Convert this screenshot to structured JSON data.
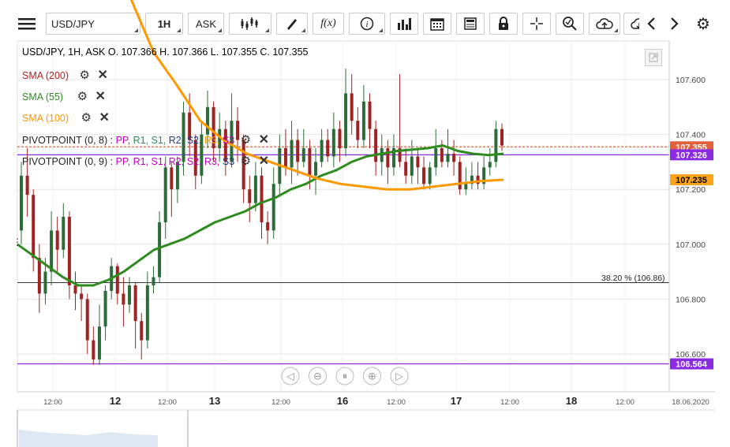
{
  "toolbar": {
    "menu_icon": "hamburger-menu-icon",
    "symbol": "USD/JPY",
    "timeframe": "1H",
    "price_side": "ASK",
    "icons": [
      "candlestick-type-icon",
      "draw-pencil-icon",
      "indicator-fx-icon",
      "info-icon",
      "volume-bars-icon",
      "calendar-icon",
      "news-icon",
      "lock-icon",
      "crosshair-icon",
      "zoom-icon",
      "upload-cloud-icon",
      "download-cloud-icon",
      "back-arrow-icon",
      "forward-arrow-icon",
      "settings-gear-icon"
    ],
    "fx_label": "f(x)"
  },
  "header": {
    "ohlc": "USD/JPY, 1H, ASK    O. 107.366 H. 107.366 L. 107.355 C. 107.355"
  },
  "indicators": [
    {
      "label": "SMA (200)",
      "color": "#b22222"
    },
    {
      "label": "SMA (55)",
      "color": "#2e8b1e"
    },
    {
      "label": "SMA (100)",
      "color": "#ff9900"
    }
  ],
  "pivots": [
    {
      "label": "PIVOTPOINT (0, 8)",
      "parts": [
        [
          "PP",
          "#c000c0"
        ],
        [
          "R1",
          "#2e8b57"
        ],
        [
          "S1",
          "#2e8b57"
        ],
        [
          "R2",
          "#1e3a8a"
        ],
        [
          "S2",
          "#1e3a8a"
        ],
        [
          "R3",
          "#ff9900"
        ],
        [
          "S3",
          "#c000c0"
        ]
      ]
    },
    {
      "label": "PIVOTPOINT (0, 9)",
      "parts": [
        [
          "PP",
          "#c000c0"
        ],
        [
          "R1",
          "#c000c0"
        ],
        [
          "S1",
          "#c000c0"
        ],
        [
          "R2",
          "#c000c0"
        ],
        [
          "S2",
          "#c000c0"
        ],
        [
          "R3",
          "#c000c0"
        ],
        [
          "S3",
          "#1e3a8a"
        ]
      ]
    }
  ],
  "fib_label": "38.20 % (106.86)",
  "price_tags": [
    {
      "value": "107.355",
      "bg": "#e2603a",
      "fg": "#ffffff",
      "y_price": 107.355
    },
    {
      "value": "107.326",
      "bg": "#8a2be2",
      "fg": "#ffffff",
      "y_price": 107.326
    },
    {
      "value": "107.235",
      "bg": "#ffa31a",
      "fg": "#000000",
      "y_price": 107.235
    },
    {
      "value": "106.564",
      "bg": "#8a2be2",
      "fg": "#ffffff",
      "y_price": 106.564
    }
  ],
  "nav_icons": [
    "scroll-left-icon",
    "zoom-out-icon",
    "reset-zoom-icon",
    "zoom-in-icon",
    "scroll-right-icon"
  ],
  "chart_data": {
    "type": "candlestick",
    "ylim": [
      106.5,
      107.7
    ],
    "y_ticks": [
      "107.600",
      "107.400",
      "107.200",
      "107.000",
      "106.800",
      "106.600"
    ],
    "x_ticks": [
      "12:00",
      "12",
      "12:00",
      "13",
      "12:00",
      "16",
      "12:00",
      "17",
      "12:00",
      "18",
      "12:00",
      "18.06.2020"
    ],
    "hlines": [
      {
        "value": 107.355,
        "color": "#e2603a",
        "dash": true
      },
      {
        "value": 107.326,
        "color": "#8a2be2"
      },
      {
        "value": 106.86,
        "color": "#333"
      },
      {
        "value": 106.564,
        "color": "#8a2be2"
      }
    ],
    "candles": [
      [
        107.05,
        107.25,
        107.3,
        107.0
      ],
      [
        107.25,
        107.18,
        107.35,
        107.1
      ],
      [
        107.18,
        106.95,
        107.2,
        106.9
      ],
      [
        106.95,
        106.82,
        107.0,
        106.75
      ],
      [
        106.82,
        106.9,
        106.95,
        106.78
      ],
      [
        106.9,
        107.05,
        107.12,
        106.85
      ],
      [
        107.05,
        106.98,
        107.1,
        106.9
      ],
      [
        106.98,
        107.1,
        107.15,
        106.95
      ],
      [
        107.1,
        106.85,
        107.12,
        106.8
      ],
      [
        106.85,
        106.82,
        106.9,
        106.76
      ],
      [
        106.82,
        106.8,
        106.85,
        106.72
      ],
      [
        106.8,
        106.65,
        106.82,
        106.6
      ],
      [
        106.65,
        106.58,
        106.7,
        106.56
      ],
      [
        106.58,
        106.7,
        106.78,
        106.56
      ],
      [
        106.7,
        106.83,
        106.85,
        106.65
      ],
      [
        106.83,
        106.92,
        106.95,
        106.8
      ],
      [
        106.92,
        106.82,
        106.93,
        106.78
      ],
      [
        106.82,
        106.78,
        106.88,
        106.7
      ],
      [
        106.78,
        106.85,
        106.88,
        106.75
      ],
      [
        106.85,
        106.72,
        106.86,
        106.62
      ],
      [
        106.72,
        106.65,
        106.75,
        106.58
      ],
      [
        106.65,
        106.85,
        106.9,
        106.62
      ],
      [
        106.85,
        106.88,
        106.92,
        106.82
      ],
      [
        106.88,
        107.08,
        107.12,
        106.86
      ],
      [
        107.08,
        107.28,
        107.32,
        107.02
      ],
      [
        107.28,
        107.2,
        107.3,
        107.1
      ],
      [
        107.2,
        107.3,
        107.32,
        107.15
      ],
      [
        107.3,
        107.48,
        107.52,
        107.25
      ],
      [
        107.48,
        107.38,
        107.55,
        107.32
      ],
      [
        107.38,
        107.25,
        107.4,
        107.2
      ],
      [
        107.25,
        107.4,
        107.45,
        107.22
      ],
      [
        107.4,
        107.5,
        107.56,
        107.35
      ],
      [
        107.5,
        107.35,
        107.52,
        107.3
      ],
      [
        107.35,
        107.42,
        107.48,
        107.3
      ],
      [
        107.42,
        107.3,
        107.45,
        107.25
      ],
      [
        107.3,
        107.45,
        107.55,
        107.28
      ],
      [
        107.45,
        107.38,
        107.5,
        107.3
      ],
      [
        107.38,
        107.2,
        107.4,
        107.15
      ],
      [
        107.2,
        107.15,
        107.25,
        107.08
      ],
      [
        107.15,
        107.25,
        107.3,
        107.12
      ],
      [
        107.25,
        107.08,
        107.28,
        107.02
      ],
      [
        107.08,
        107.05,
        107.12,
        107.0
      ],
      [
        107.05,
        107.22,
        107.28,
        107.02
      ],
      [
        107.22,
        107.35,
        107.4,
        107.18
      ],
      [
        107.35,
        107.28,
        107.42,
        107.25
      ],
      [
        107.28,
        107.38,
        107.45,
        107.22
      ],
      [
        107.38,
        107.3,
        107.42,
        107.25
      ],
      [
        107.3,
        107.35,
        107.42,
        107.28
      ],
      [
        107.35,
        107.25,
        107.38,
        107.2
      ],
      [
        107.25,
        107.3,
        107.35,
        107.18
      ],
      [
        107.3,
        107.38,
        107.42,
        107.28
      ],
      [
        107.38,
        107.32,
        107.42,
        107.3
      ],
      [
        107.32,
        107.42,
        107.48,
        107.28
      ],
      [
        107.42,
        107.35,
        107.45,
        107.3
      ],
      [
        107.35,
        107.55,
        107.64,
        107.32
      ],
      [
        107.55,
        107.45,
        107.62,
        107.4
      ],
      [
        107.45,
        107.38,
        107.5,
        107.35
      ],
      [
        107.38,
        107.52,
        107.58,
        107.35
      ],
      [
        107.52,
        107.42,
        107.55,
        107.35
      ],
      [
        107.42,
        107.3,
        107.45,
        107.25
      ],
      [
        107.3,
        107.35,
        107.4,
        107.25
      ],
      [
        107.35,
        107.28,
        107.38,
        107.22
      ],
      [
        107.28,
        107.35,
        107.4,
        107.25
      ],
      [
        107.35,
        107.3,
        107.62,
        107.28
      ],
      [
        107.3,
        107.25,
        107.35,
        107.22
      ],
      [
        107.25,
        107.32,
        107.38,
        107.22
      ],
      [
        107.32,
        107.28,
        107.35,
        107.22
      ],
      [
        107.28,
        107.22,
        107.32,
        107.2
      ],
      [
        107.22,
        107.28,
        107.3,
        107.2
      ],
      [
        107.28,
        107.35,
        107.42,
        107.25
      ],
      [
        107.35,
        107.3,
        107.38,
        107.28
      ],
      [
        107.3,
        107.33,
        107.42,
        107.28
      ],
      [
        107.33,
        107.3,
        107.38,
        107.25
      ],
      [
        107.3,
        107.2,
        107.32,
        107.18
      ],
      [
        107.2,
        107.22,
        107.28,
        107.18
      ],
      [
        107.22,
        107.25,
        107.3,
        107.2
      ],
      [
        107.25,
        107.22,
        107.3,
        107.2
      ],
      [
        107.22,
        107.28,
        107.32,
        107.2
      ],
      [
        107.28,
        107.3,
        107.35,
        107.25
      ],
      [
        107.3,
        107.42,
        107.45,
        107.28
      ],
      [
        107.42,
        107.36,
        107.44,
        107.34
      ]
    ],
    "sma55": [
      107.0,
      106.96,
      106.92,
      106.88,
      106.85,
      106.85,
      106.87,
      106.9,
      106.94,
      106.98,
      107.0,
      107.02,
      107.05,
      107.08,
      107.1,
      107.12,
      107.15,
      107.17,
      107.2,
      107.22,
      107.25,
      107.27,
      107.3,
      107.32,
      107.33,
      107.34,
      107.345,
      107.35,
      107.36,
      107.34,
      107.33,
      107.325,
      107.33
    ],
    "sma100": [
      107.9,
      107.7,
      107.58,
      107.45,
      107.38,
      107.33,
      107.3,
      107.27,
      107.24,
      107.22,
      107.21,
      107.2,
      107.2,
      107.21,
      107.22,
      107.23,
      107.235
    ]
  }
}
